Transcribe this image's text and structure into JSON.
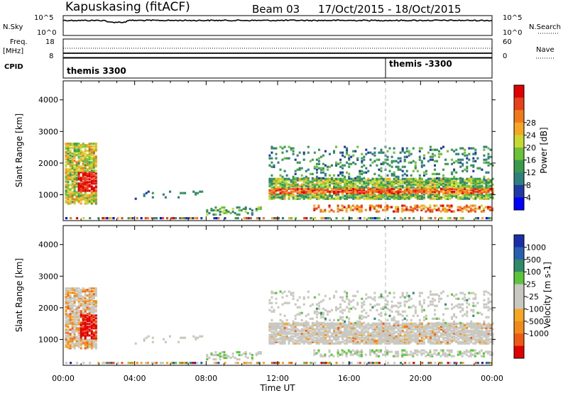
{
  "header": {
    "station": "Kapuskasing (fitACF)",
    "beam": "Beam 03",
    "dates": "17/Oct/2015 - 18/Oct/2015"
  },
  "top_panels": {
    "nsky_label": "N.Sky",
    "nsky_ticks": [
      "10^5",
      "10^0"
    ],
    "nsearch_label": "N.Search",
    "freq_label": "Freq.",
    "freq_unit": "[MHz]",
    "freq_ticks": [
      "18",
      "8"
    ],
    "nave_label": "Nave",
    "nave_ticks": [
      "60",
      "0"
    ],
    "cpid_label": "CPID",
    "cpid_left": "themis 3300",
    "cpid_right": "themis -3300",
    "cpid_change_hour": 18.0
  },
  "colors": {
    "power_scale": [
      "#0000ff",
      "#1f3aa5",
      "#2f7f7f",
      "#3a9a4c",
      "#6bc23a",
      "#c8d830",
      "#f5a623",
      "#f07a1a",
      "#e8401a",
      "#e00000"
    ],
    "velocity_scale": [
      "#1a2ea8",
      "#2a5fb0",
      "#2f8a6a",
      "#5cc43a",
      "#c8c8c0",
      "#c8c8c0",
      "#f5a623",
      "#f08a1a",
      "#ee5a14",
      "#e00000"
    ],
    "grey": "#c8c8c0"
  },
  "chart_data": [
    {
      "type": "heatmap",
      "name": "power",
      "ylabel": "Slant Range [km]",
      "yticks": [
        "1000",
        "2000",
        "3000",
        "4000"
      ],
      "ylim": [
        180,
        4600
      ],
      "xlim": [
        0,
        24
      ],
      "colorbar": {
        "label": "Power [dB]",
        "ticks": [
          "4",
          "8",
          "12",
          "16",
          "20",
          "24",
          "28"
        ],
        "range": [
          0,
          30
        ]
      },
      "features": [
        {
          "desc": "early echo blob",
          "hours": [
            0.1,
            1.9
          ],
          "ranges": [
            700,
            2600
          ],
          "peak_db": 27
        },
        {
          "desc": "main band",
          "hours": [
            11.5,
            24
          ],
          "ranges": [
            850,
            1500
          ],
          "peak_db": 22
        },
        {
          "desc": "near range band",
          "hours": [
            14,
            24
          ],
          "ranges": [
            450,
            650
          ],
          "peak_db": 26
        }
      ]
    },
    {
      "type": "heatmap",
      "name": "velocity",
      "ylabel": "Slant Range [km]",
      "yticks": [
        "1000",
        "2000",
        "3000",
        "4000"
      ],
      "ylim": [
        180,
        4600
      ],
      "xlim": [
        0,
        24
      ],
      "xlabel": "Time UT",
      "xticks": [
        "00:00",
        "04:00",
        "08:00",
        "12:00",
        "16:00",
        "20:00",
        "00:00"
      ],
      "colorbar": {
        "label": "Velocity [m s-1]",
        "ticks": [
          "1000",
          "500",
          "100",
          "25",
          "-25",
          "-100",
          "-500",
          "-1000"
        ]
      }
    }
  ]
}
